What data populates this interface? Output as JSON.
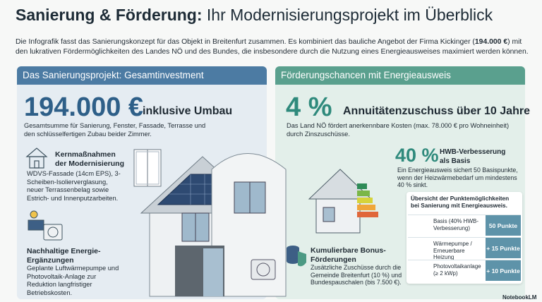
{
  "header": {
    "title_bold": "Sanierung & Förderung:",
    "title_rest": " Ihr Modernisierungsprojekt im Überblick",
    "intro_before": "Die Infografik fasst das Sanierungskonzept für das Objekt in Breitenfurt zusammen. Es kombiniert das bauliche Angebot der Firma Kickinger (",
    "intro_highlight": "194.000 €",
    "intro_after": ") mit den lukrativen Fördermöglichkeiten des Landes NÖ und des Bundes, die insbesondere durch die Nutzung eines Energieausweises maximiert werden können."
  },
  "left": {
    "heading": "Das Sanierungsprojekt: Gesamtinvestment",
    "amount": "194.000 €",
    "amount_suffix": "inklusive Umbau",
    "amount_text": "Gesamtsumme für Sanierung, Fenster, Fassade, Terrasse und den schlüsselfertigen Zubau beider Zimmer.",
    "measures": {
      "title": "Kernmaßnahmen der Modernisierung",
      "text": "WDVS-Fassade (14cm EPS), 3-Scheiben-Isolierverglasung, neuer Terrassenbelag sowie Estrich- und Innenputzarbeiten."
    },
    "energy": {
      "title": "Nachhaltige Energie-Ergänzungen",
      "text": "Geplante Luftwärmepumpe und Photovoltaik-Anlage zur Reduktion langfristiger Betriebskosten."
    }
  },
  "right": {
    "heading": "Förderungschancen mit Energieausweis",
    "rate": "4 %",
    "rate_title": "Annuitätenzuschuss über 10 Jahre",
    "rate_text": "Das Land NÖ fördert anerkennbare Kosten (max. 78.000 € pro Wohneinheit) durch Zinszuschüsse.",
    "hwb": {
      "value": "40 %",
      "title": "HWB-Verbesserung als Basis",
      "text": "Ein Energieausweis sichert 50 Basispunkte, wenn der Heizwärmebedarf um mindestens 40 % sinkt."
    },
    "points": {
      "title": "Übersicht der Punktemöglichkeiten bei Sanierung mit Energieausweis.",
      "rows": [
        [
          "Basis (40% HWB-Verbesserung)",
          "50 Punkte"
        ],
        [
          "Wärmepumpe / Erneuerbare Heizung",
          "+ 15 Punkte"
        ],
        [
          "Photovoltaikanlage (≥ 2 kWp)",
          "+ 10 Punkte"
        ]
      ]
    },
    "bonus": {
      "title": "Kumulierbare Bonus-Förderungen",
      "text": "Zusätzliche Zuschüsse durch die Gemeinde Breitenfurt (10 %) und Bundespauschalen (bis 7.500 €)."
    }
  },
  "footer": {
    "brand": "NotebookLM"
  }
}
